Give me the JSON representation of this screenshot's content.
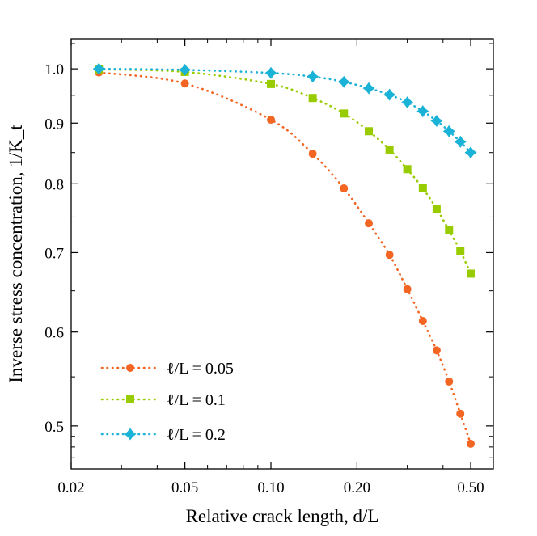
{
  "chart_data": {
    "type": "scatter",
    "title": "",
    "xlabel": "Relative crack length, d/L",
    "ylabel": "Inverse stress concentration,  1/K_t",
    "x_scale": "log",
    "y_scale": "log",
    "xlim": [
      0.02,
      0.6
    ],
    "ylim": [
      0.46,
      1.06
    ],
    "x_ticks": [
      {
        "value": 0.02,
        "label": "0.02"
      },
      {
        "value": 0.05,
        "label": "0.05"
      },
      {
        "value": 0.1,
        "label": "0.10"
      },
      {
        "value": 0.2,
        "label": "0.20"
      },
      {
        "value": 0.5,
        "label": "0.50"
      }
    ],
    "y_ticks": [
      {
        "value": 0.5,
        "label": "0.5"
      },
      {
        "value": 0.6,
        "label": "0.6"
      },
      {
        "value": 0.7,
        "label": "0.7"
      },
      {
        "value": 0.8,
        "label": "0.8"
      },
      {
        "value": 0.9,
        "label": "0.9"
      },
      {
        "value": 1.0,
        "label": "1.0"
      }
    ],
    "grid": false,
    "legend_position": "bottom-left",
    "series": [
      {
        "name": "ℓ/L = 0.05",
        "color": "#f26522",
        "marker": "circle",
        "line": "dotted",
        "x": [
          0.025,
          0.05,
          0.1,
          0.14,
          0.18,
          0.22,
          0.26,
          0.3,
          0.34,
          0.38,
          0.42,
          0.46,
          0.5
        ],
        "y": [
          0.993,
          0.972,
          0.906,
          0.848,
          0.793,
          0.741,
          0.697,
          0.652,
          0.613,
          0.579,
          0.545,
          0.512,
          0.483
        ]
      },
      {
        "name": "ℓ/L = 0.1",
        "color": "#99cc00",
        "marker": "square",
        "line": "dotted",
        "x": [
          0.025,
          0.05,
          0.1,
          0.14,
          0.18,
          0.22,
          0.26,
          0.3,
          0.34,
          0.38,
          0.42,
          0.46,
          0.5
        ],
        "y": [
          0.999,
          0.994,
          0.971,
          0.945,
          0.917,
          0.886,
          0.855,
          0.823,
          0.793,
          0.762,
          0.731,
          0.702,
          0.672
        ]
      },
      {
        "name": "ℓ/L = 0.2",
        "color": "#1ab2d6",
        "marker": "diamond",
        "line": "dotted",
        "x": [
          0.025,
          0.05,
          0.1,
          0.14,
          0.18,
          0.22,
          0.26,
          0.3,
          0.34,
          0.38,
          0.42,
          0.46,
          0.5
        ],
        "y": [
          1.0,
          0.998,
          0.992,
          0.985,
          0.975,
          0.963,
          0.951,
          0.937,
          0.921,
          0.904,
          0.886,
          0.868,
          0.85
        ]
      }
    ]
  }
}
